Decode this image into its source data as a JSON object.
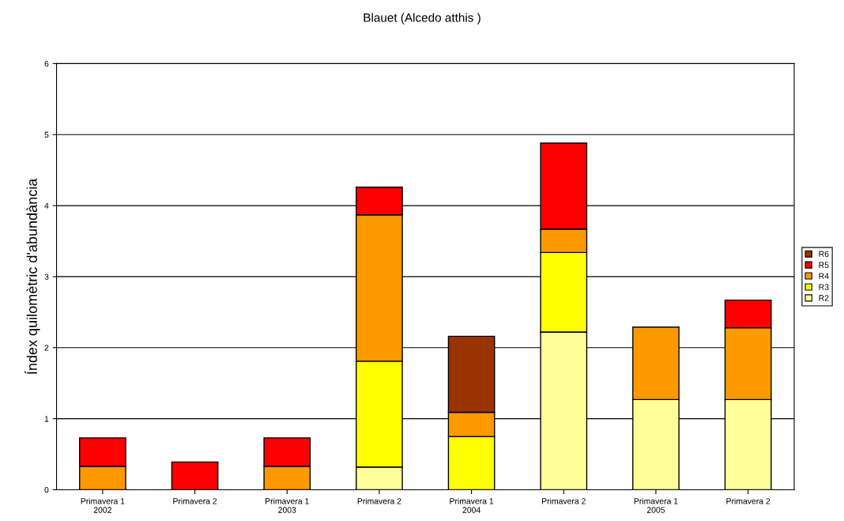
{
  "chart_data": {
    "type": "bar",
    "title": "Blauet (Alcedo atthis )",
    "ylabel": "Índex quilomètric d'abundància",
    "categories": [
      "Primavera 1\n2002",
      "Primavera 2",
      "Primavera 1\n2003",
      "Primavera 2",
      "Primavera 1\n2004",
      "Primavera 2",
      "Primavera 1\n2005",
      "Primavera 2"
    ],
    "stacked": true,
    "ylim": [
      0,
      6
    ],
    "yticks": [
      0,
      1,
      2,
      3,
      4,
      5,
      6
    ],
    "grid": "y",
    "legend": "right",
    "series": [
      {
        "name": "R2",
        "color": "#ffff99",
        "values": [
          null,
          null,
          null,
          0.32,
          null,
          2.22,
          1.27,
          1.27
        ]
      },
      {
        "name": "R3",
        "color": "#ffff00",
        "values": [
          null,
          null,
          null,
          1.49,
          0.75,
          1.12,
          null,
          null
        ]
      },
      {
        "name": "R4",
        "color": "#ff9900",
        "values": [
          0.33,
          null,
          0.33,
          2.06,
          0.34,
          0.33,
          1.02,
          1.01
        ]
      },
      {
        "name": "R5",
        "color": "#ff0000",
        "values": [
          0.4,
          0.39,
          0.4,
          0.39,
          null,
          1.21,
          null,
          0.39
        ]
      },
      {
        "name": "R6",
        "color": "#993300",
        "values": [
          null,
          null,
          null,
          null,
          1.07,
          null,
          null,
          null
        ]
      }
    ]
  }
}
